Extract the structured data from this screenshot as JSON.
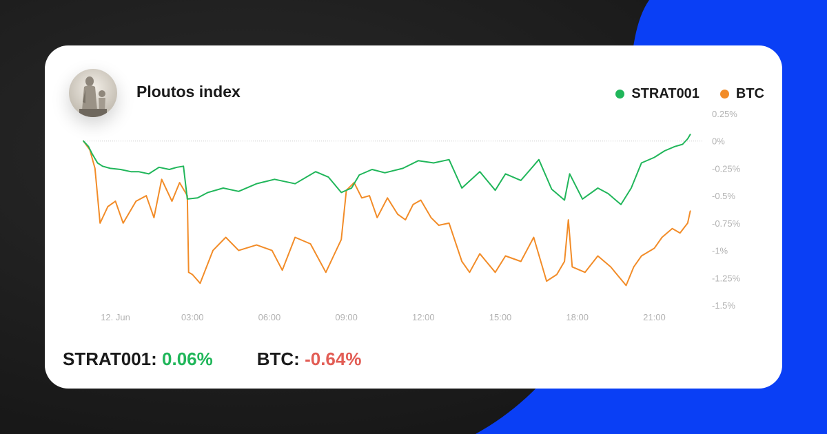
{
  "header": {
    "title": "Ploutos index"
  },
  "legend": [
    {
      "label": "STRAT001",
      "color": "#20b65a"
    },
    {
      "label": "BTC",
      "color": "#f28c28"
    }
  ],
  "summary": {
    "strat_label": "STRAT001:",
    "strat_value": "0.06%",
    "btc_label": "BTC:",
    "btc_value": "-0.64%"
  },
  "chart_data": {
    "type": "line",
    "ylim": [
      -1.5,
      0.25
    ],
    "y_tick_labels": [
      "0.25%",
      "0%",
      "-0.25%",
      "-0.5%",
      "-0.75%",
      "-1%",
      "-1.25%",
      "-1.5%"
    ],
    "y_tick_values": [
      0.25,
      0,
      -0.25,
      -0.5,
      -0.75,
      -1,
      -1.25,
      -1.5
    ],
    "x_tick_labels": [
      "12. Jun",
      "03:00",
      "06:00",
      "09:00",
      "12:00",
      "15:00",
      "18:00",
      "21:00"
    ],
    "x_tick_values": [
      0,
      3,
      6,
      9,
      12,
      15,
      18,
      21
    ],
    "xlim": [
      -1.25,
      22.6
    ],
    "x_unit": "hours since 12. Jun 00:00",
    "zero_line": true,
    "series": [
      {
        "name": "STRAT001",
        "color": "#20b65a",
        "x": [
          -1.25,
          -1.05,
          -0.9,
          -0.7,
          -0.5,
          -0.2,
          0.2,
          0.6,
          0.9,
          1.3,
          1.7,
          2.1,
          2.4,
          2.65,
          2.8,
          3.2,
          3.6,
          4.2,
          4.8,
          5.5,
          6.2,
          7.0,
          7.8,
          8.3,
          8.8,
          9.2,
          9.5,
          10.0,
          10.5,
          11.2,
          11.8,
          12.4,
          13.0,
          13.5,
          14.2,
          14.8,
          15.2,
          15.8,
          16.5,
          17.0,
          17.5,
          17.7,
          18.2,
          18.8,
          19.2,
          19.7,
          20.1,
          20.5,
          21.0,
          21.4,
          21.8,
          22.1,
          22.3,
          22.4
        ],
        "y": [
          0.0,
          -0.05,
          -0.12,
          -0.2,
          -0.23,
          -0.25,
          -0.26,
          -0.28,
          -0.28,
          -0.3,
          -0.24,
          -0.26,
          -0.24,
          -0.23,
          -0.53,
          -0.52,
          -0.47,
          -0.43,
          -0.46,
          -0.39,
          -0.35,
          -0.39,
          -0.28,
          -0.33,
          -0.47,
          -0.43,
          -0.31,
          -0.26,
          -0.29,
          -0.25,
          -0.18,
          -0.2,
          -0.17,
          -0.43,
          -0.28,
          -0.45,
          -0.3,
          -0.36,
          -0.17,
          -0.44,
          -0.54,
          -0.3,
          -0.53,
          -0.43,
          -0.48,
          -0.58,
          -0.43,
          -0.2,
          -0.15,
          -0.09,
          -0.05,
          -0.03,
          0.02,
          0.06
        ]
      },
      {
        "name": "BTC",
        "color": "#f28c28",
        "x": [
          -1.25,
          -1.0,
          -0.8,
          -0.6,
          -0.3,
          0.0,
          0.3,
          0.8,
          1.2,
          1.5,
          1.8,
          2.2,
          2.5,
          2.8,
          2.85,
          3.0,
          3.3,
          3.8,
          4.3,
          4.8,
          5.5,
          6.1,
          6.5,
          7.0,
          7.6,
          8.2,
          8.5,
          8.8,
          9.0,
          9.3,
          9.6,
          9.9,
          10.2,
          10.6,
          11.0,
          11.3,
          11.6,
          11.9,
          12.3,
          12.6,
          13.0,
          13.5,
          13.8,
          14.2,
          14.8,
          15.2,
          15.8,
          16.3,
          16.8,
          17.2,
          17.5,
          17.65,
          17.8,
          18.3,
          18.8,
          19.3,
          19.9,
          20.2,
          20.5,
          21.0,
          21.3,
          21.7,
          22.0,
          22.3,
          22.4
        ],
        "y": [
          0.0,
          -0.08,
          -0.25,
          -0.75,
          -0.6,
          -0.55,
          -0.75,
          -0.55,
          -0.5,
          -0.7,
          -0.35,
          -0.55,
          -0.38,
          -0.5,
          -1.2,
          -1.22,
          -1.3,
          -1.0,
          -0.88,
          -1.0,
          -0.95,
          -1.0,
          -1.18,
          -0.88,
          -0.94,
          -1.2,
          -1.05,
          -0.9,
          -0.45,
          -0.38,
          -0.52,
          -0.5,
          -0.7,
          -0.52,
          -0.67,
          -0.72,
          -0.58,
          -0.54,
          -0.7,
          -0.77,
          -0.75,
          -1.1,
          -1.2,
          -1.03,
          -1.2,
          -1.05,
          -1.1,
          -0.88,
          -1.28,
          -1.22,
          -1.1,
          -0.72,
          -1.15,
          -1.2,
          -1.05,
          -1.15,
          -1.32,
          -1.15,
          -1.05,
          -0.98,
          -0.88,
          -0.8,
          -0.84,
          -0.75,
          -0.64
        ]
      }
    ]
  }
}
